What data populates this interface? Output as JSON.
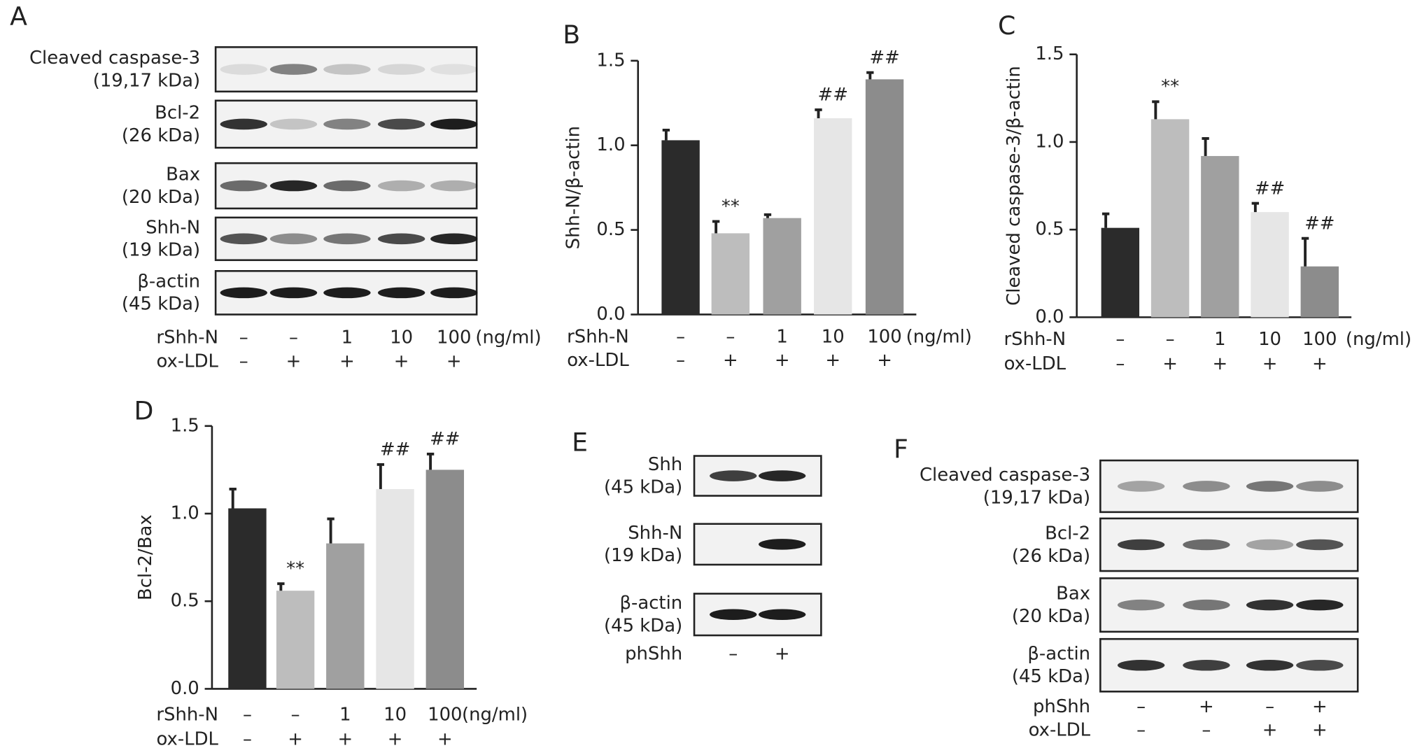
{
  "chart_data": [
    {
      "type": "bar",
      "panel": "B",
      "ylabel": "Shh-N/β-actin",
      "treatments": [
        {
          "name": "rShh-N",
          "labels": [
            "–",
            "–",
            "1",
            "10",
            "100"
          ],
          "unit": "(ng/ml)"
        },
        {
          "name": "ox-LDL",
          "labels": [
            "–",
            "+",
            "+",
            "+",
            "+"
          ]
        }
      ],
      "values": [
        1.03,
        0.48,
        0.57,
        1.16,
        1.39
      ],
      "errors": [
        0.06,
        0.07,
        0.02,
        0.05,
        0.04
      ],
      "annotations": [
        null,
        "**",
        null,
        "##",
        "##"
      ],
      "colors": [
        "#2b2b2b",
        "#bdbdbd",
        "#a0a0a0",
        "#e6e6e6",
        "#8c8c8c"
      ],
      "ylim": [
        0,
        1.5
      ],
      "yticks": [
        {
          "value": 0,
          "label": "0.0"
        },
        0.5,
        {
          "value": 1,
          "label": "1.0"
        },
        1.5
      ]
    },
    {
      "type": "bar",
      "panel": "C",
      "ylabel": "Cleaved caspase-3/β-actin",
      "treatments": [
        {
          "name": "rShh-N",
          "labels": [
            "–",
            "–",
            "1",
            "10",
            "100"
          ],
          "unit": "(ng/ml)"
        },
        {
          "name": "ox-LDL",
          "labels": [
            "–",
            "+",
            "+",
            "+",
            "+"
          ]
        }
      ],
      "values": [
        0.51,
        1.13,
        0.92,
        0.6,
        0.29
      ],
      "errors": [
        0.08,
        0.1,
        0.1,
        0.05,
        0.16
      ],
      "annotations": [
        null,
        "**",
        null,
        "##",
        "##"
      ],
      "colors": [
        "#2b2b2b",
        "#bdbdbd",
        "#a0a0a0",
        "#e6e6e6",
        "#8c8c8c"
      ],
      "ylim": [
        0,
        1.5
      ],
      "yticks": [
        {
          "value": 0,
          "label": "0.0"
        },
        0.5,
        {
          "value": 1,
          "label": "1.0"
        },
        1.5
      ]
    },
    {
      "type": "bar",
      "panel": "D",
      "ylabel": "Bcl-2/Bax",
      "treatments": [
        {
          "name": "rShh-N",
          "labels": [
            "–",
            "–",
            "1",
            "10",
            "100"
          ],
          "unit": "(ng/ml)"
        },
        {
          "name": "ox-LDL",
          "labels": [
            "–",
            "+",
            "+",
            "+",
            "+"
          ]
        }
      ],
      "values": [
        1.03,
        0.56,
        0.83,
        1.14,
        1.25
      ],
      "errors": [
        0.11,
        0.04,
        0.14,
        0.14,
        0.09
      ],
      "annotations": [
        null,
        "**",
        null,
        "##",
        "##"
      ],
      "colors": [
        "#2b2b2b",
        "#bdbdbd",
        "#a0a0a0",
        "#e6e6e6",
        "#8c8c8c"
      ],
      "ylim": [
        0,
        1.5
      ],
      "yticks": [
        {
          "value": 0,
          "label": "0.0"
        },
        0.5,
        {
          "value": 1,
          "label": "1.0"
        },
        1.5
      ]
    }
  ],
  "blots": [
    {
      "panel": "A",
      "rows": [
        {
          "protein": "Cleaved caspase-3",
          "size": "(19,17 kDa)"
        },
        {
          "protein": "Bcl-2",
          "size": "(26 kDa)"
        },
        {
          "protein": "Bax",
          "size": "(20 kDa)"
        },
        {
          "protein": "Shh-N",
          "size": "(19 kDa)"
        },
        {
          "protein": "β-actin",
          "size": "(45 kDa)"
        }
      ],
      "treatments": [
        {
          "name": "rShh-N",
          "labels": [
            "–",
            "–",
            "1",
            "10",
            "100"
          ],
          "unit": "(ng/ml)"
        },
        {
          "name": "ox-LDL",
          "labels": [
            "–",
            "+",
            "+",
            "+",
            "+"
          ]
        }
      ]
    },
    {
      "panel": "E",
      "rows": [
        {
          "protein": "Shh",
          "size": "(45 kDa)"
        },
        {
          "protein": "Shh-N",
          "size": "(19 kDa)"
        },
        {
          "protein": "β-actin",
          "size": "(45 kDa)"
        }
      ],
      "treatments": [
        {
          "name": "phShh",
          "labels": [
            "–",
            "+"
          ]
        }
      ]
    },
    {
      "panel": "F",
      "rows": [
        {
          "protein": "Cleaved caspase-3",
          "size": "(19,17 kDa)"
        },
        {
          "protein": "Bcl-2",
          "size": "(26 kDa)"
        },
        {
          "protein": "Bax",
          "size": "(20 kDa)"
        },
        {
          "protein": "β-actin",
          "size": "(45 kDa)"
        }
      ],
      "treatments": [
        {
          "name": "phShh",
          "labels": [
            "–",
            "+",
            "–",
            "+"
          ]
        },
        {
          "name": "ox-LDL",
          "labels": [
            "–",
            "–",
            "+",
            "+"
          ]
        }
      ]
    }
  ]
}
